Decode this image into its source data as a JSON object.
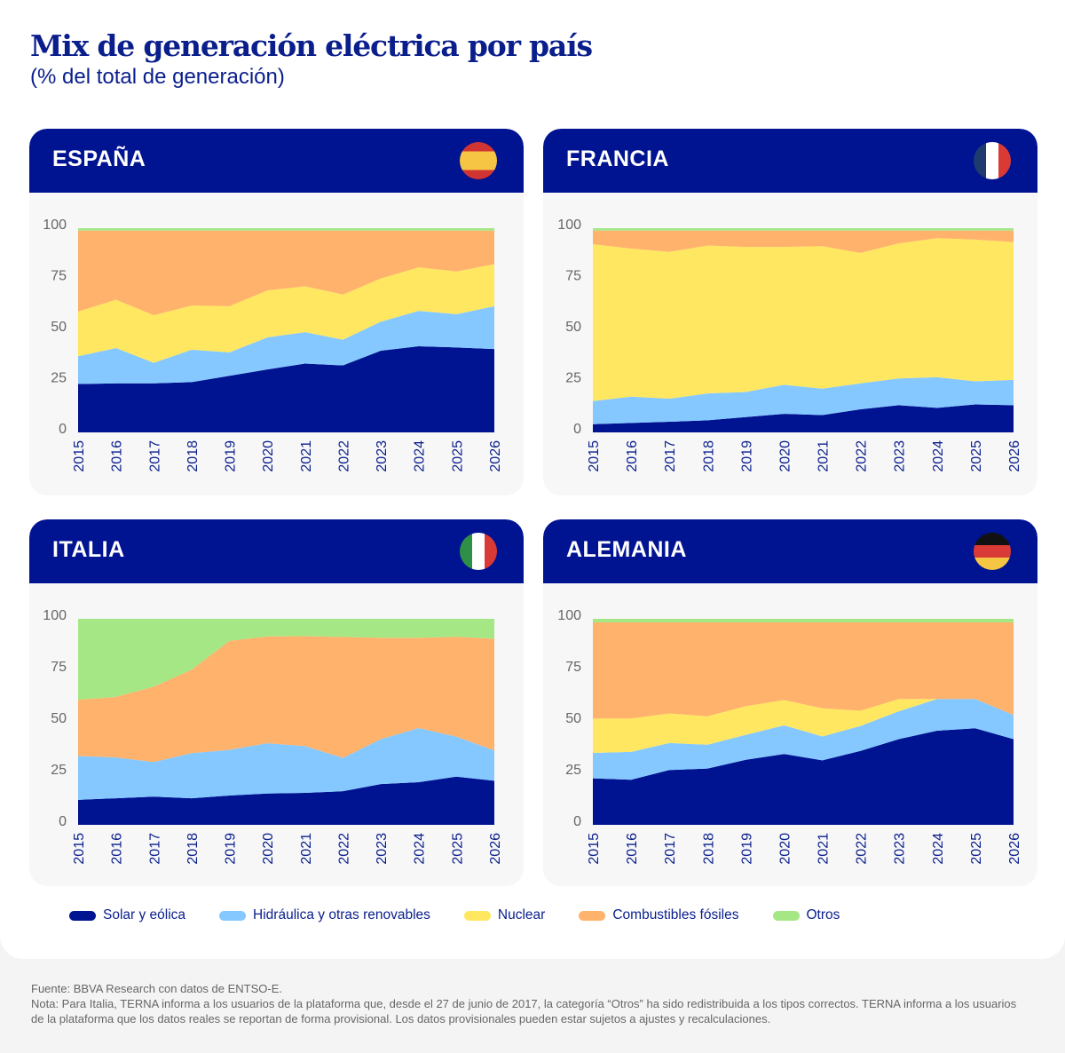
{
  "title": "Mix de generación eléctrica por país",
  "subtitle": "(% del total de generación)",
  "colors": {
    "header": "#001391",
    "solar": "#001391",
    "hidro": "#85c8ff",
    "nuclear": "#ffe761",
    "fosiles": "#ffb26b",
    "otros": "#a6e785"
  },
  "legend": [
    "Solar y eólica",
    "Hidráulica y otras renovables",
    "Nuclear",
    "Combustibles fósiles",
    "Otros"
  ],
  "footer": {
    "source": "Fuente: BBVA Research con datos de ENTSO-E.",
    "note": "Nota: Para Italia, TERNA informa a los usuarios de la plataforma que, desde el 27 de junio de 2017, la categoría “Otros” ha sido redistribuida a los tipos correctos. TERNA informa a los usuarios de la plataforma que los datos reales se reportan de forma provisional. Los datos provisionales pueden estar sujetos a ajustes y recalculaciones."
  },
  "chart_data": [
    {
      "type": "area",
      "stacked": true,
      "title": "ESPAÑA",
      "flag": "spain-flag",
      "ylim": [
        0,
        100
      ],
      "yticks": [
        "0",
        "25",
        "50",
        "75",
        "100"
      ],
      "x": [
        "2015",
        "2016",
        "2017",
        "2018",
        "2019",
        "2020",
        "2021",
        "2022",
        "2023",
        "2024",
        "2025",
        "2026"
      ],
      "series": [
        {
          "name": "Solar y eólica",
          "values": [
            23.7,
            24,
            24,
            24.6,
            27.7,
            30.8,
            33.7,
            32.8,
            40,
            42.2,
            41.6,
            40.8
          ]
        },
        {
          "name": "Hidráulica y otras renovables",
          "values": [
            13.6,
            17.3,
            10.1,
            15.9,
            11.5,
            15.7,
            15.4,
            12.6,
            14.2,
            17.3,
            16.3,
            21
          ]
        },
        {
          "name": "Nuclear",
          "values": [
            21.9,
            23.7,
            23.3,
            21.6,
            22.6,
            23,
            22.4,
            22.1,
            21.2,
            21.3,
            20.9,
            20.6
          ]
        },
        {
          "name": "Combustibles fósiles",
          "values": [
            39.6,
            33.8,
            41.4,
            36.7,
            37,
            29.3,
            27.3,
            31.3,
            23.4,
            18,
            20,
            16.4
          ]
        },
        {
          "name": "Otros",
          "values": [
            1.2,
            1.2,
            1.2,
            1.2,
            1.2,
            1.2,
            1.2,
            1.2,
            1.2,
            1.2,
            1.2,
            1.2
          ]
        }
      ]
    },
    {
      "type": "area",
      "stacked": true,
      "title": "FRANCIA",
      "flag": "france-flag",
      "ylim": [
        0,
        100
      ],
      "yticks": [
        "0",
        "25",
        "50",
        "75",
        "100"
      ],
      "x": [
        "2015",
        "2016",
        "2017",
        "2018",
        "2019",
        "2020",
        "2021",
        "2022",
        "2023",
        "2024",
        "2025",
        "2026"
      ],
      "series": [
        {
          "name": "Solar y eólica",
          "values": [
            4,
            4.6,
            5.2,
            5.9,
            7.5,
            9.1,
            8.5,
            11.3,
            13.3,
            12,
            13.7,
            13.3
          ]
        },
        {
          "name": "Hidráulica y otras renovables",
          "values": [
            11.3,
            12.9,
            11.3,
            13.2,
            12.3,
            14.2,
            12.9,
            12.7,
            13.1,
            15,
            11.3,
            12.4
          ]
        },
        {
          "name": "Nuclear",
          "values": [
            76.9,
            72.5,
            71.9,
            72.4,
            71,
            67.5,
            69.8,
            63.9,
            66.2,
            68.1,
            69.4,
            67.5
          ]
        },
        {
          "name": "Combustibles fósiles",
          "values": [
            6.6,
            8.8,
            10.4,
            7.3,
            8,
            8,
            7.6,
            10.9,
            6.2,
            3.7,
            4.4,
            5.6
          ]
        },
        {
          "name": "Otros",
          "values": [
            1.2,
            1.2,
            1.2,
            1.2,
            1.2,
            1.2,
            1.2,
            1.2,
            1.2,
            1.2,
            1.2,
            1.2
          ]
        }
      ]
    },
    {
      "type": "area",
      "stacked": true,
      "title": "ITALIA",
      "flag": "italy-flag",
      "ylim": [
        0,
        100
      ],
      "yticks": [
        "0",
        "25",
        "50",
        "75",
        "100"
      ],
      "x": [
        "2015",
        "2016",
        "2017",
        "2018",
        "2019",
        "2020",
        "2021",
        "2022",
        "2023",
        "2024",
        "2025",
        "2026"
      ],
      "series": [
        {
          "name": "Solar y eólica",
          "values": [
            12.1,
            12.9,
            13.7,
            12.9,
            14.2,
            15.2,
            15.5,
            16.3,
            19.8,
            20.7,
            23.4,
            21.4
          ]
        },
        {
          "name": "Hidráulica y otras renovables",
          "values": [
            21.3,
            19.8,
            16.8,
            21.9,
            22.2,
            24.4,
            22.7,
            16.2,
            21.8,
            26.3,
            19.4,
            14.7
          ]
        },
        {
          "name": "Nuclear",
          "values": [
            0,
            0,
            0,
            0,
            0,
            0,
            0,
            0,
            0,
            0,
            0,
            0
          ]
        },
        {
          "name": "Combustibles fósiles",
          "values": [
            27.3,
            29.4,
            36.6,
            40.5,
            52.9,
            51.9,
            53.4,
            58.7,
            49.2,
            43.8,
            48.5,
            54.2
          ]
        },
        {
          "name": "Otros",
          "values": [
            39.3,
            37.9,
            32.9,
            24.7,
            10.7,
            8.5,
            8.4,
            8.8,
            9.2,
            9.2,
            8.7,
            9.7
          ]
        }
      ]
    },
    {
      "type": "area",
      "stacked": true,
      "title": "ALEMANIA",
      "flag": "germany-flag",
      "ylim": [
        0,
        100
      ],
      "yticks": [
        "0",
        "25",
        "50",
        "75",
        "100"
      ],
      "x": [
        "2015",
        "2016",
        "2017",
        "2018",
        "2019",
        "2020",
        "2021",
        "2022",
        "2023",
        "2024",
        "2025",
        "2026"
      ],
      "series": [
        {
          "name": "Solar y eólica",
          "values": [
            22.6,
            21.9,
            26.6,
            27.3,
            31.6,
            34.4,
            31.3,
            35.9,
            41.6,
            45.7,
            46.9,
            41.6
          ]
        },
        {
          "name": "Hidráulica y otras renovables",
          "values": [
            12.3,
            13.5,
            13.1,
            11.6,
            12.1,
            13.9,
            11.6,
            12.1,
            13.5,
            15.4,
            14.2,
            11.7
          ]
        },
        {
          "name": "Nuclear",
          "values": [
            16.7,
            16.2,
            14.4,
            13.8,
            13.9,
            12.3,
            13.7,
            7.4,
            6,
            0,
            0,
            0
          ]
        },
        {
          "name": "Combustibles fósiles",
          "values": [
            46.7,
            46.7,
            44.2,
            45.6,
            40.7,
            37.7,
            41.7,
            42.9,
            37.2,
            37.2,
            37.2,
            45
          ]
        },
        {
          "name": "Otros",
          "values": [
            1.7,
            1.7,
            1.7,
            1.7,
            1.7,
            1.7,
            1.7,
            1.7,
            1.7,
            1.7,
            1.7,
            1.7
          ]
        }
      ]
    }
  ]
}
